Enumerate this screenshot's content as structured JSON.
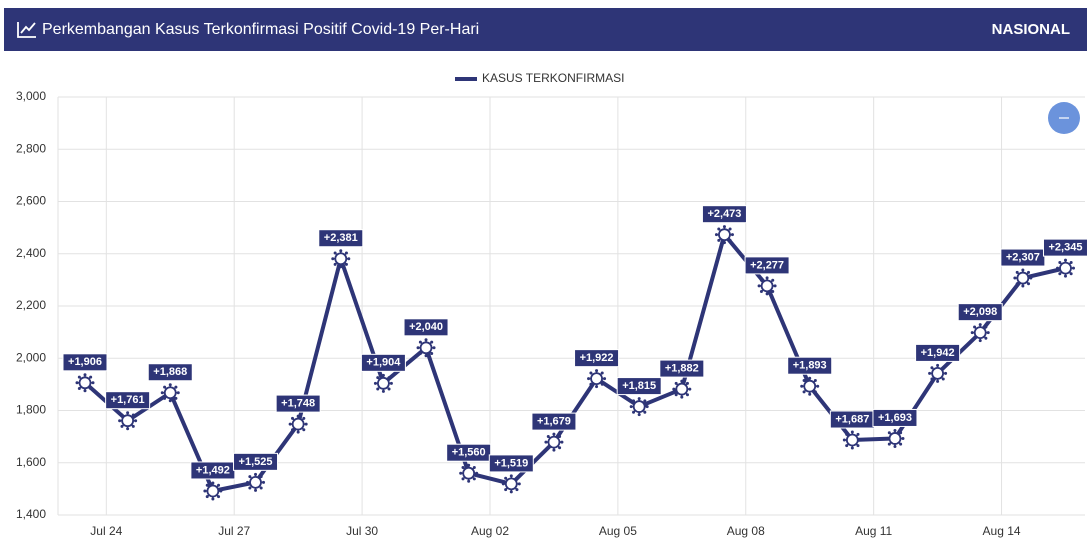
{
  "header": {
    "title": "Perkembangan Kasus Terkonfirmasi Positif Covid-19 Per-Hari",
    "scope": "NASIONAL"
  },
  "chart_data": {
    "type": "line",
    "categories": [
      null,
      "Jul 24",
      null,
      null,
      "Jul 27",
      null,
      null,
      "Jul 30",
      null,
      null,
      "Aug 02",
      null,
      null,
      "Aug 05",
      null,
      null,
      "Aug 08",
      null,
      null,
      "Aug 11",
      null,
      null,
      "Aug 14",
      null
    ],
    "series": [
      {
        "name": "KASUS TERKONFIRMASI",
        "color": "#2e3577",
        "values": [
          1906,
          1761,
          1868,
          1492,
          1525,
          1748,
          2381,
          1904,
          2040,
          1560,
          1519,
          1679,
          1922,
          1815,
          1882,
          2473,
          2277,
          1893,
          1687,
          1693,
          1942,
          2098,
          2307,
          2345
        ],
        "value_labels": [
          "+1,906",
          "+1,761",
          "+1,868",
          "+1,492",
          "+1,525",
          "+1,748",
          "+2,381",
          "+1,904",
          "+2,040",
          "+1,560",
          "+1,519",
          "+1,679",
          "+1,922",
          "+1,815",
          "+1,882",
          "+2,473",
          "+2,277",
          "+1,893",
          "+1,687",
          "+1,693",
          "+1,942",
          "+2,098",
          "+2,307",
          "+2,345"
        ]
      }
    ],
    "ylim": [
      1400,
      3000
    ],
    "yticks": [
      {
        "value": 1400,
        "label": "1,400"
      },
      {
        "value": 1600,
        "label": "1,600"
      },
      {
        "value": 1800,
        "label": "1,800"
      },
      {
        "value": 2000,
        "label": "2,000"
      },
      {
        "value": 2200,
        "label": "2,200"
      },
      {
        "value": 2400,
        "label": "2,400"
      },
      {
        "value": 2600,
        "label": "2,600"
      },
      {
        "value": 2800,
        "label": "2,800"
      },
      {
        "value": 3000,
        "label": "3,000"
      }
    ],
    "grid": true,
    "legend": "top"
  }
}
